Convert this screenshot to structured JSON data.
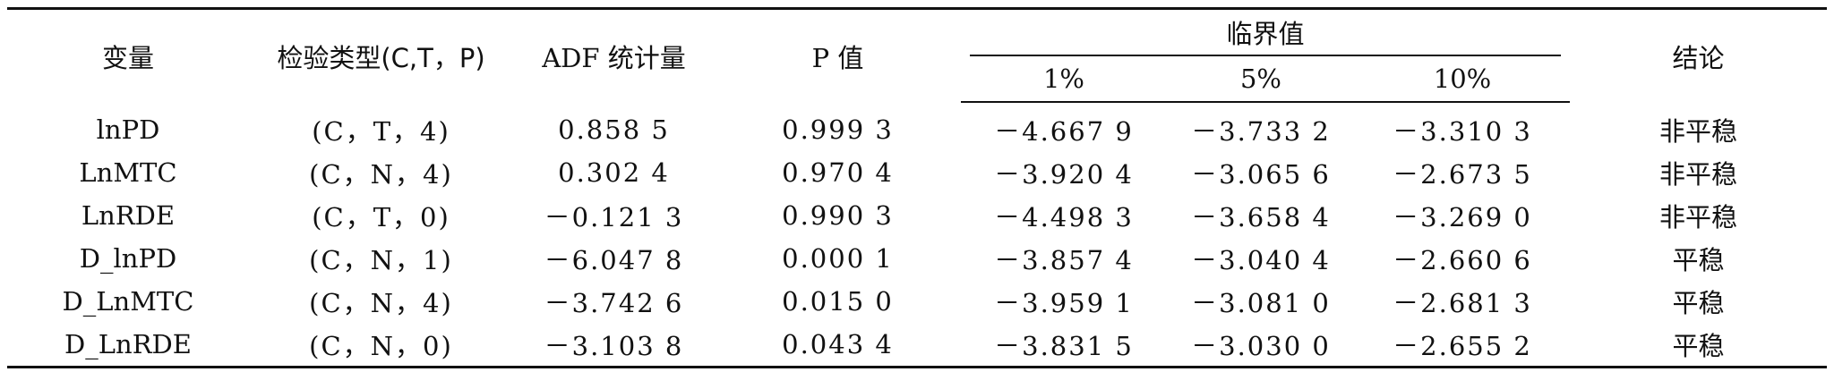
{
  "header": {
    "variable": "变量",
    "test_type": "检验类型(C,T，P)",
    "adf": "ADF 统计量",
    "p_value": "P 值",
    "critical": "临界值",
    "conclusion": "结论",
    "crit_levels": [
      "1%",
      "5%",
      "10%"
    ]
  },
  "rows": [
    {
      "variable": "lnPD",
      "test_type": "(C，T，4)",
      "adf": "0.858 5",
      "p": "0.999 3",
      "c1": "－4.667 9",
      "c5": "－3.733 2",
      "c10": "－3.310 3",
      "conclusion": "非平稳"
    },
    {
      "variable": "LnMTC",
      "test_type": "(C，N，4)",
      "adf": "0.302 4",
      "p": "0.970 4",
      "c1": "－3.920 4",
      "c5": "－3.065 6",
      "c10": "－2.673 5",
      "conclusion": "非平稳"
    },
    {
      "variable": "LnRDE",
      "test_type": "(C，T，0)",
      "adf": "－0.121 3",
      "p": "0.990 3",
      "c1": "－4.498 3",
      "c5": "－3.658 4",
      "c10": "－3.269 0",
      "conclusion": "非平稳"
    },
    {
      "variable": "D_lnPD",
      "test_type": "(C，N，1)",
      "adf": "－6.047 8",
      "p": "0.000 1",
      "c1": "－3.857 4",
      "c5": "－3.040 4",
      "c10": "－2.660 6",
      "conclusion": "平稳"
    },
    {
      "variable": "D_LnMTC",
      "test_type": "(C，N，4)",
      "adf": "－3.742 6",
      "p": "0.015 0",
      "c1": "－3.959 1",
      "c5": "－3.081 0",
      "c10": "－2.681 3",
      "conclusion": "平稳"
    },
    {
      "variable": "D_LnRDE",
      "test_type": "(C，N，0)",
      "adf": "－3.103 8",
      "p": "0.043 4",
      "c1": "－3.831 5",
      "c5": "－3.030 0",
      "c10": "－2.655 2",
      "conclusion": "平稳"
    }
  ]
}
